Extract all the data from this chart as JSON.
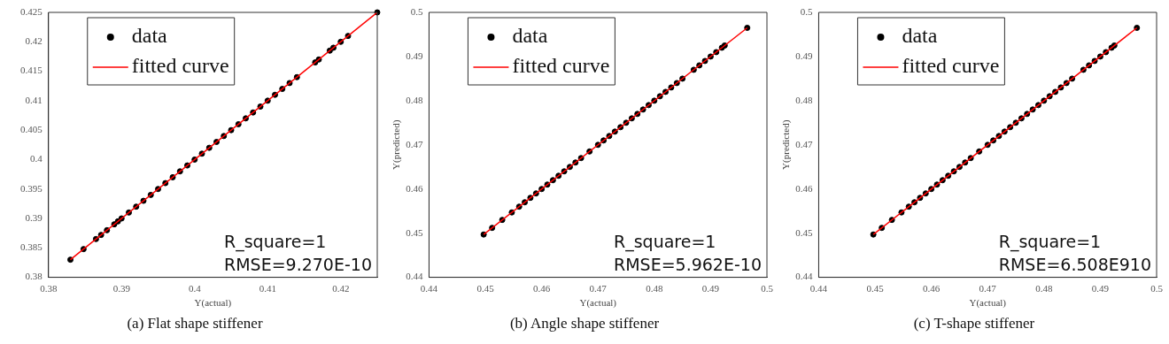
{
  "chart_data": [
    {
      "type": "scatter",
      "title": "(a) Flat shape stiffener",
      "xlabel": "Y(actual)",
      "xlim": [
        0.38,
        0.425
      ],
      "ylim": [
        0.38,
        0.425
      ],
      "xticks": [
        0.38,
        0.39,
        0.4,
        0.41,
        0.42
      ],
      "yticks": [
        0.38,
        0.385,
        0.39,
        0.395,
        0.4,
        0.405,
        0.41,
        0.415,
        0.42,
        0.425
      ],
      "grid": false,
      "legend": "top left",
      "annotations": [
        "R_square=1",
        "RMSE=9.270E-10"
      ],
      "series": [
        {
          "name": "data",
          "marker": "circle",
          "color": "#000000",
          "x": [
            0.383,
            0.3848,
            0.3865,
            0.3872,
            0.388,
            0.389,
            0.3895,
            0.39,
            0.391,
            0.392,
            0.393,
            0.394,
            0.395,
            0.396,
            0.397,
            0.398,
            0.399,
            0.4,
            0.401,
            0.402,
            0.403,
            0.404,
            0.405,
            0.406,
            0.407,
            0.408,
            0.409,
            0.41,
            0.411,
            0.412,
            0.413,
            0.414,
            0.4165,
            0.417,
            0.4185,
            0.419,
            0.42,
            0.421,
            0.425
          ],
          "values": [
            0.383,
            0.3848,
            0.3865,
            0.3872,
            0.388,
            0.389,
            0.3895,
            0.39,
            0.391,
            0.392,
            0.393,
            0.394,
            0.395,
            0.396,
            0.397,
            0.398,
            0.399,
            0.4,
            0.401,
            0.402,
            0.403,
            0.404,
            0.405,
            0.406,
            0.407,
            0.408,
            0.409,
            0.41,
            0.411,
            0.412,
            0.413,
            0.414,
            0.4165,
            0.417,
            0.4185,
            0.419,
            0.42,
            0.421,
            0.425
          ]
        },
        {
          "name": "fitted curve",
          "type": "line",
          "marker": "none",
          "color": "#ff0000",
          "line_style": "solid",
          "x": [
            0.383,
            0.425
          ],
          "values": [
            0.383,
            0.425
          ]
        }
      ]
    },
    {
      "type": "scatter",
      "title": "(b) Angle shape stiffener",
      "xlabel": "Y(actual)",
      "ylabel": "Y(predicted)",
      "xlim": [
        0.44,
        0.5
      ],
      "ylim": [
        0.44,
        0.5
      ],
      "xticks": [
        0.44,
        0.45,
        0.46,
        0.47,
        0.48,
        0.49,
        0.5
      ],
      "yticks": [
        0.44,
        0.45,
        0.46,
        0.47,
        0.48,
        0.49,
        0.5
      ],
      "grid": false,
      "legend": "top left",
      "annotations": [
        "R_square=1",
        "RMSE=5.962E-10"
      ],
      "series": [
        {
          "name": "data",
          "marker": "circle",
          "color": "#000000",
          "x": [
            0.4497,
            0.4512,
            0.453,
            0.4547,
            0.456,
            0.457,
            0.458,
            0.459,
            0.46,
            0.461,
            0.462,
            0.463,
            0.464,
            0.465,
            0.466,
            0.467,
            0.4685,
            0.47,
            0.471,
            0.472,
            0.473,
            0.474,
            0.475,
            0.476,
            0.477,
            0.478,
            0.479,
            0.48,
            0.481,
            0.482,
            0.483,
            0.484,
            0.485,
            0.487,
            0.488,
            0.489,
            0.49,
            0.491,
            0.492,
            0.4925,
            0.4965
          ],
          "values": [
            0.4497,
            0.4512,
            0.453,
            0.4547,
            0.456,
            0.457,
            0.458,
            0.459,
            0.46,
            0.461,
            0.462,
            0.463,
            0.464,
            0.465,
            0.466,
            0.467,
            0.4685,
            0.47,
            0.471,
            0.472,
            0.473,
            0.474,
            0.475,
            0.476,
            0.477,
            0.478,
            0.479,
            0.48,
            0.481,
            0.482,
            0.483,
            0.484,
            0.485,
            0.487,
            0.488,
            0.489,
            0.49,
            0.491,
            0.492,
            0.4925,
            0.4965
          ]
        },
        {
          "name": "fitted curve",
          "type": "line",
          "marker": "none",
          "color": "#ff0000",
          "line_style": "solid",
          "x": [
            0.4497,
            0.4965
          ],
          "values": [
            0.4497,
            0.4965
          ]
        }
      ]
    },
    {
      "type": "scatter",
      "title": "(c) T-shape stiffener",
      "xlabel": "Y(actual)",
      "ylabel": "Y(predicted)",
      "xlim": [
        0.44,
        0.5
      ],
      "ylim": [
        0.44,
        0.5
      ],
      "xticks": [
        0.44,
        0.45,
        0.46,
        0.47,
        0.48,
        0.49,
        0.5
      ],
      "yticks": [
        0.44,
        0.45,
        0.46,
        0.47,
        0.48,
        0.49,
        0.5
      ],
      "grid": false,
      "legend": "top left",
      "annotations": [
        "R_square=1",
        "RMSE=6.508E910"
      ],
      "series": [
        {
          "name": "data",
          "marker": "circle",
          "color": "#000000",
          "x": [
            0.4497,
            0.4512,
            0.453,
            0.4547,
            0.456,
            0.457,
            0.458,
            0.459,
            0.46,
            0.461,
            0.462,
            0.463,
            0.464,
            0.465,
            0.466,
            0.467,
            0.4685,
            0.47,
            0.471,
            0.472,
            0.473,
            0.474,
            0.475,
            0.476,
            0.477,
            0.478,
            0.479,
            0.48,
            0.481,
            0.482,
            0.483,
            0.484,
            0.485,
            0.487,
            0.488,
            0.489,
            0.49,
            0.491,
            0.492,
            0.4925,
            0.4965
          ],
          "values": [
            0.4497,
            0.4512,
            0.453,
            0.4547,
            0.456,
            0.457,
            0.458,
            0.459,
            0.46,
            0.461,
            0.462,
            0.463,
            0.464,
            0.465,
            0.466,
            0.467,
            0.4685,
            0.47,
            0.471,
            0.472,
            0.473,
            0.474,
            0.475,
            0.476,
            0.477,
            0.478,
            0.479,
            0.48,
            0.481,
            0.482,
            0.483,
            0.484,
            0.485,
            0.487,
            0.488,
            0.489,
            0.49,
            0.491,
            0.492,
            0.4925,
            0.4965
          ]
        },
        {
          "name": "fitted curve",
          "type": "line",
          "marker": "none",
          "color": "#ff0000",
          "line_style": "solid",
          "x": [
            0.4497,
            0.4965
          ],
          "values": [
            0.4497,
            0.4965
          ]
        }
      ]
    }
  ]
}
